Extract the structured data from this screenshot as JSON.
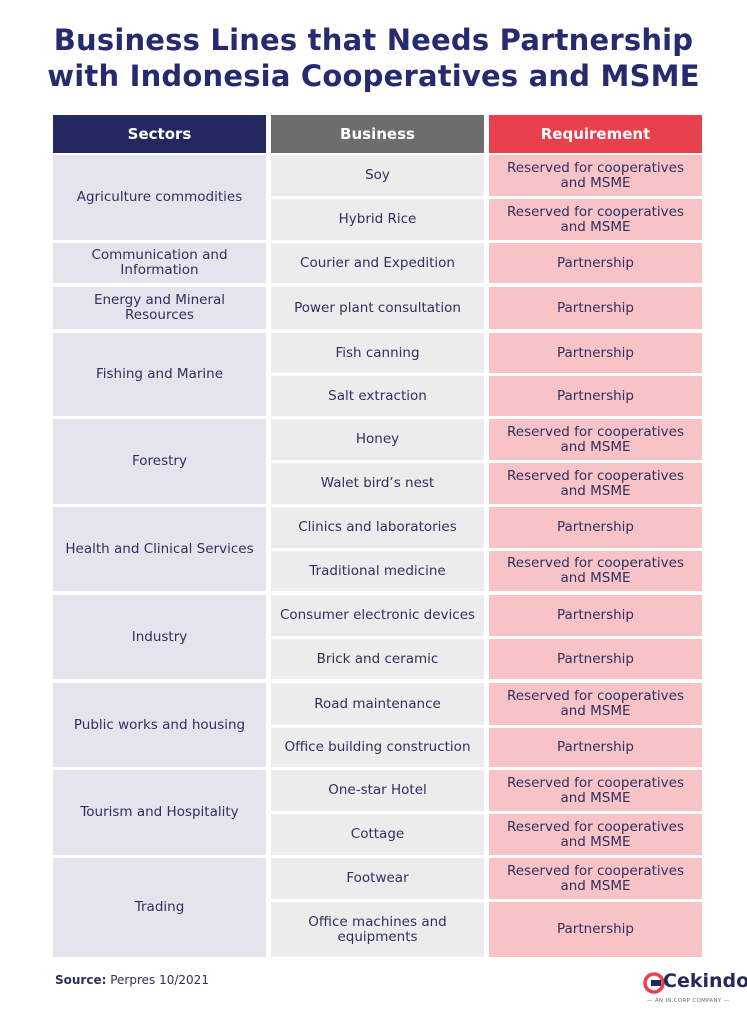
{
  "title_line1": "Business Lines that Needs Partnership",
  "title_line2": "with Indonesia Cooperatives and MSME",
  "headers": {
    "sectors": "Sectors",
    "business": "Business",
    "requirement": "Requirement"
  },
  "sectors": [
    "Agriculture commodities",
    "Communication and Information",
    "Energy and Mineral Resources",
    "Fishing and Marine",
    "Forestry",
    "Health and Clinical Services",
    "Industry",
    "Public works and housing",
    "Tourism and Hospitality",
    "Trading"
  ],
  "rows": [
    {
      "business": "Soy",
      "requirement": "Reserved for cooperatives and MSME"
    },
    {
      "business": "Hybrid Rice",
      "requirement": "Reserved for cooperatives and MSME"
    },
    {
      "business": "Courier and Expedition",
      "requirement": "Partnership"
    },
    {
      "business": "Power plant consultation",
      "requirement": "Partnership"
    },
    {
      "business": "Fish canning",
      "requirement": "Partnership"
    },
    {
      "business": "Salt extraction",
      "requirement": "Partnership"
    },
    {
      "business": "Honey",
      "requirement": "Reserved for cooperatives and MSME"
    },
    {
      "business": "Walet bird’s nest",
      "requirement": "Reserved for cooperatives and MSME"
    },
    {
      "business": "Clinics and laboratories",
      "requirement": "Partnership"
    },
    {
      "business": "Traditional medicine",
      "requirement": "Reserved for cooperatives and MSME"
    },
    {
      "business": "Consumer electronic devices",
      "requirement": "Partnership"
    },
    {
      "business": "Brick and ceramic",
      "requirement": "Partnership"
    },
    {
      "business": "Road maintenance",
      "requirement": "Reserved for cooperatives and MSME"
    },
    {
      "business": "Office building construction",
      "requirement": "Partnership"
    },
    {
      "business": "One-star Hotel",
      "requirement": "Reserved for cooperatives and MSME"
    },
    {
      "business": "Cottage",
      "requirement": "Reserved for cooperatives and MSME"
    },
    {
      "business": "Footwear",
      "requirement": "Reserved for cooperatives and MSME"
    },
    {
      "business": "Office machines and equipments",
      "requirement": "Partnership"
    }
  ],
  "source_label": "Source:",
  "source_value": "Perpres 10/2021",
  "logo": {
    "name": "Cekindo",
    "tagline": "— AN IN.CORP COMPANY —"
  }
}
